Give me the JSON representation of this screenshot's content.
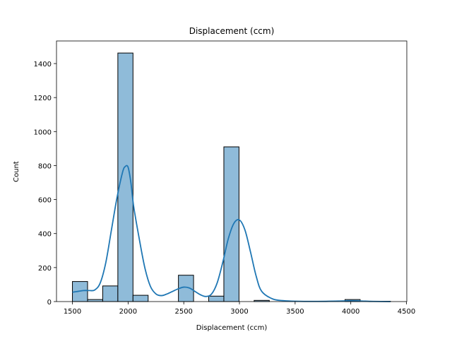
{
  "chart_data": {
    "type": "bar",
    "title": "Displacement (ccm)",
    "xlabel": "Displacement (ccm)",
    "ylabel": "Count",
    "xlim": [
      1357,
      4503
    ],
    "ylim": [
      0,
      1533
    ],
    "xticks": [
      "1500",
      "2000",
      "2500",
      "3000",
      "3500",
      "4000",
      "4500"
    ],
    "yticks": [
      "0",
      "200",
      "400",
      "600",
      "800",
      "1000",
      "1200",
      "1400"
    ],
    "bin_edges": [
      1500,
      1636,
      1772,
      1908,
      2044,
      2180,
      2316,
      2452,
      2588,
      2724,
      2860,
      2996,
      3132,
      3268,
      3404,
      3540,
      3676,
      3812,
      3948,
      4084,
      4220,
      4356
    ],
    "counts": [
      118,
      12,
      92,
      1462,
      37,
      0,
      0,
      155,
      0,
      32,
      910,
      0,
      7,
      0,
      0,
      0,
      0,
      0,
      12,
      0,
      2
    ],
    "kde": {
      "x": [
        1500,
        1550,
        1600,
        1650,
        1700,
        1750,
        1800,
        1850,
        1900,
        1950,
        1975,
        2000,
        2025,
        2050,
        2100,
        2150,
        2200,
        2250,
        2300,
        2350,
        2400,
        2450,
        2500,
        2550,
        2600,
        2650,
        2700,
        2750,
        2800,
        2850,
        2900,
        2950,
        3000,
        3050,
        3100,
        3150,
        3200,
        3300,
        3400,
        3500,
        3700,
        3900,
        4000,
        4100,
        4200,
        4356
      ],
      "y": [
        55,
        60,
        65,
        65,
        68,
        110,
        230,
        420,
        610,
        760,
        795,
        790,
        700,
        560,
        370,
        200,
        90,
        45,
        35,
        45,
        60,
        75,
        85,
        80,
        60,
        40,
        30,
        45,
        110,
        230,
        370,
        460,
        480,
        420,
        290,
        150,
        60,
        15,
        5,
        2,
        1,
        3,
        5,
        3,
        1,
        0
      ]
    },
    "bar_color": "#8fbbd9",
    "bar_edge": "#000000",
    "line_color": "#1f77b4",
    "grid": false,
    "legend": "none"
  }
}
